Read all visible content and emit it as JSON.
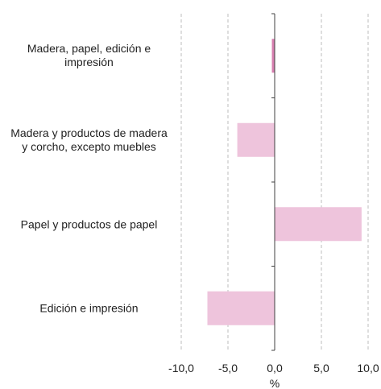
{
  "chart_data": {
    "type": "bar",
    "orientation": "horizontal",
    "categories": [
      "Madera, papel, edición e impresión",
      "Madera y productos de madera y corcho, excepto muebles",
      "Papel y productos de papel",
      "Edición e impresión"
    ],
    "values": [
      -0.3,
      -4.0,
      9.3,
      -7.2
    ],
    "xlabel": "%",
    "xlim": [
      -10,
      10
    ],
    "xticks": [
      "-10,0",
      "-5,0",
      "0,0",
      "5,0",
      "10,0"
    ],
    "xtick_values": [
      -10,
      -5,
      0,
      5,
      10
    ],
    "grid": "vertical-dashed",
    "colors": {
      "bar": "#eec4dc",
      "bar_highlight": "#d77fb0",
      "axis": "#404040",
      "grid": "#bdbdbd"
    }
  }
}
